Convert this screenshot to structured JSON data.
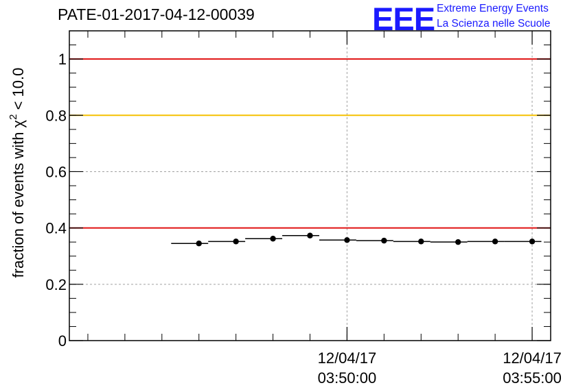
{
  "title": "PATE-01-2017-04-12-00039",
  "logo": {
    "letters": "EEE",
    "line1": "Extreme Energy Events",
    "line2": "La Scienza nelle Scuole"
  },
  "colors": {
    "red_line": "#e01010",
    "yellow_line": "#f5c000",
    "logo_blue": "#1a1aff",
    "grid": "#a0a0a0"
  },
  "chart_data": {
    "type": "scatter",
    "ylabel_parts": [
      "fraction of events with ",
      "χ",
      "2",
      " < 10.0"
    ],
    "ylim": [
      0,
      1.1
    ],
    "yticks": [
      {
        "value": 0,
        "label": "0"
      },
      {
        "value": 0.2,
        "label": "0.2"
      },
      {
        "value": 0.4,
        "label": "0.4"
      },
      {
        "value": 0.6,
        "label": "0.6"
      },
      {
        "value": 0.8,
        "label": "0.8"
      },
      {
        "value": 1.0,
        "label": "1"
      }
    ],
    "xlim_seconds": [
      -450,
      330
    ],
    "xticks": [
      {
        "seconds": 0,
        "line1": "12/04/17",
        "line2": "03:50:00"
      },
      {
        "seconds": 300,
        "line1": "12/04/17",
        "line2": "03:55:00"
      }
    ],
    "reference_lines": [
      {
        "y": 1.0,
        "color": "red"
      },
      {
        "y": 0.8,
        "color": "yellow"
      },
      {
        "y": 0.4,
        "color": "red"
      }
    ],
    "grid": true,
    "bin_width_seconds": 60,
    "points": [
      {
        "seconds": -240,
        "y": 0.345
      },
      {
        "seconds": -180,
        "y": 0.352
      },
      {
        "seconds": -120,
        "y": 0.362
      },
      {
        "seconds": -60,
        "y": 0.373
      },
      {
        "seconds": 0,
        "y": 0.357
      },
      {
        "seconds": 60,
        "y": 0.355
      },
      {
        "seconds": 120,
        "y": 0.352
      },
      {
        "seconds": 180,
        "y": 0.35
      },
      {
        "seconds": 240,
        "y": 0.352
      },
      {
        "seconds": 300,
        "y": 0.352
      }
    ]
  }
}
